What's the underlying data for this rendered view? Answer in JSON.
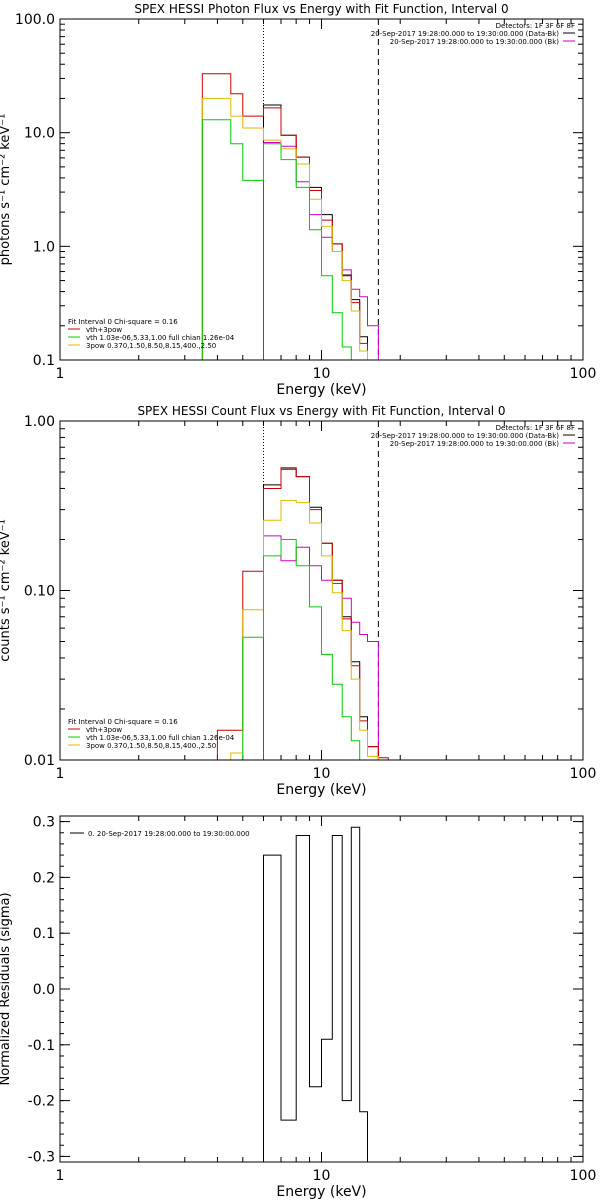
{
  "chart_data": [
    {
      "type": "line",
      "title": "SPEX HESSI Photon Flux vs Energy with Fit Function, Interval 0",
      "xlabel": "Energy (keV)",
      "ylabel": "photons s⁻¹ cm⁻² keV⁻¹",
      "xscale": "log",
      "yscale": "log",
      "xlim": [
        1,
        100
      ],
      "ylim": [
        0.1,
        100
      ],
      "xticks": [
        {
          "v": 1,
          "label": "1"
        },
        {
          "v": 10,
          "label": "10"
        },
        {
          "v": 100,
          "label": "100"
        }
      ],
      "yticks": [
        {
          "v": 0.1,
          "label": "0.1"
        },
        {
          "v": 1,
          "label": "1.0"
        },
        {
          "v": 10,
          "label": "10.0"
        },
        {
          "v": 100,
          "label": "100.0"
        }
      ],
      "vlines": [
        {
          "x": 6.0,
          "style": "dotted",
          "color": "#000000"
        },
        {
          "x": 16.5,
          "style": "dashed",
          "color": "#000000"
        }
      ],
      "header_text": [
        "Detectors: 1F 3F 6F 8F",
        "20-Sep-2017 19:28:00.000 to 19:30:00.000 (Data-Bk)",
        "20-Sep-2017 19:28:00.000 to 19:30:00.000 (Bk)"
      ],
      "header_colors": [
        "#000000",
        "#cc00cc"
      ],
      "legend_lines": [
        {
          "text": "Fit Interval 0   Chi-square = 0.16",
          "color": null
        },
        {
          "text": "vth+3pow",
          "color": "#cc0000"
        },
        {
          "text": "vth 1.03e-06,5.33,1.00   full chian 1.26e-04",
          "color": "#00cc00"
        },
        {
          "text": "3pow 0.370,1.50,8.50,8.15,400.,2.50",
          "color": "#ddbb00"
        }
      ],
      "series": [
        {
          "color": "#000000",
          "edges": [
            6.0,
            7.0,
            8.0,
            9.0,
            10.0,
            11.0,
            12.0,
            13.0,
            14.0,
            15.0,
            16.5
          ],
          "values": [
            17.5,
            9.5,
            6.1,
            3.3,
            1.9,
            1.05,
            0.56,
            0.34,
            0.16,
            0.1
          ]
        },
        {
          "color": "#cc00cc",
          "edges": [
            6.0,
            7.0,
            8.0,
            9.0,
            10.0,
            11.0,
            12.0,
            13.0,
            14.0,
            15.0,
            16.5
          ],
          "values": [
            8.2,
            7.6,
            3.7,
            1.9,
            1.2,
            0.9,
            0.62,
            0.42,
            0.36,
            0.2
          ]
        },
        {
          "color": "#cc0000",
          "edges": [
            3.5,
            4.5,
            5.0,
            6.0,
            7.0,
            8.0,
            9.0,
            10.0,
            11.0,
            12.0,
            13.0,
            14.0,
            15.0,
            16.5
          ],
          "values": [
            33,
            22,
            14,
            16.5,
            9.5,
            6.1,
            3.1,
            1.7,
            1.05,
            0.55,
            0.32,
            0.14,
            0.1
          ]
        },
        {
          "color": "#ddbb00",
          "edges": [
            3.5,
            4.5,
            5.0,
            6.0,
            7.0,
            8.0,
            9.0,
            10.0,
            11.0,
            12.0,
            13.0,
            14.0,
            15.0,
            16.5
          ],
          "values": [
            20,
            14,
            11,
            8.6,
            7.2,
            5.3,
            2.6,
            1.5,
            0.9,
            0.5,
            0.27,
            0.12,
            0.1
          ]
        },
        {
          "color": "#00cc00",
          "edges": [
            3.5,
            4.5,
            5.0,
            6.0,
            7.0,
            8.0,
            9.0,
            10.0,
            11.0,
            12.0,
            13.0,
            14.0,
            15.0
          ],
          "values": [
            13,
            8.0,
            3.8,
            8.0,
            5.8,
            3.3,
            1.4,
            0.55,
            0.26,
            0.13,
            0.1,
            0.1
          ]
        }
      ]
    },
    {
      "type": "line",
      "title": "SPEX HESSI Count Flux vs Energy with Fit Function, Interval 0",
      "xlabel": "Energy (keV)",
      "ylabel": "counts s⁻¹ cm⁻² keV⁻¹",
      "xscale": "log",
      "yscale": "log",
      "xlim": [
        1,
        100
      ],
      "ylim": [
        0.01,
        1.0
      ],
      "xticks": [
        {
          "v": 1,
          "label": "1"
        },
        {
          "v": 10,
          "label": "10"
        },
        {
          "v": 100,
          "label": "100"
        }
      ],
      "yticks": [
        {
          "v": 0.01,
          "label": "0.01"
        },
        {
          "v": 0.1,
          "label": "0.10"
        },
        {
          "v": 1,
          "label": "1.00"
        }
      ],
      "vlines": [
        {
          "x": 6.0,
          "style": "dotted",
          "color": "#000000"
        },
        {
          "x": 16.5,
          "style": "dashed",
          "color": "#000000"
        }
      ],
      "header_text": [
        "Detectors: 1F 3F 6F 8F",
        "20-Sep-2017 19:28:00.000 to 19:30:00.000 (Data-Bk)",
        "20-Sep-2017 19:28:00.000 to 19:30:00.000 (Bk)"
      ],
      "header_colors": [
        "#000000",
        "#cc00cc"
      ],
      "legend_lines": [
        {
          "text": "Fit Interval 0   Chi-square = 0.16",
          "color": null
        },
        {
          "text": "vth+3pow",
          "color": "#cc0000"
        },
        {
          "text": "vth 1.03e-06,5.33,1.00   full chian 1.26e-04",
          "color": "#00cc00"
        },
        {
          "text": "3pow 0.370,1.50,8.50,8.15,400.,2.50",
          "color": "#ddbb00"
        }
      ],
      "series": [
        {
          "color": "#000000",
          "edges": [
            6.0,
            7.0,
            8.0,
            9.0,
            10.0,
            11.0,
            12.0,
            13.0,
            14.0,
            15.0,
            16.5
          ],
          "values": [
            0.42,
            0.52,
            0.47,
            0.31,
            0.19,
            0.115,
            0.07,
            0.038,
            0.018,
            0.012
          ]
        },
        {
          "color": "#cc00cc",
          "edges": [
            6.0,
            7.0,
            8.0,
            9.0,
            10.0,
            11.0,
            12.0,
            13.0,
            14.0,
            15.0,
            16.5
          ],
          "values": [
            0.21,
            0.15,
            0.18,
            0.14,
            0.115,
            0.11,
            0.09,
            0.065,
            0.055,
            0.05
          ]
        },
        {
          "color": "#cc0000",
          "edges": [
            4.0,
            5.0,
            6.0,
            7.0,
            8.0,
            9.0,
            10.0,
            11.0,
            12.0,
            13.0,
            14.0,
            15.0,
            16.5,
            18.0
          ],
          "values": [
            0.015,
            0.13,
            0.4,
            0.53,
            0.47,
            0.3,
            0.19,
            0.115,
            0.068,
            0.036,
            0.017,
            0.012,
            0.0103
          ]
        },
        {
          "color": "#ddbb00",
          "edges": [
            4.5,
            5.0,
            6.0,
            7.0,
            8.0,
            9.0,
            10.0,
            11.0,
            12.0,
            13.0,
            14.0,
            15.0,
            16.5
          ],
          "values": [
            0.011,
            0.077,
            0.26,
            0.34,
            0.33,
            0.25,
            0.16,
            0.097,
            0.058,
            0.03,
            0.015,
            0.0105
          ]
        },
        {
          "color": "#00cc00",
          "edges": [
            5.0,
            6.0,
            7.0,
            8.0,
            9.0,
            10.0,
            11.0,
            12.0,
            13.0,
            14.0
          ],
          "values": [
            0.053,
            0.16,
            0.2,
            0.14,
            0.08,
            0.042,
            0.028,
            0.018,
            0.013
          ]
        }
      ]
    },
    {
      "type": "line",
      "title": "",
      "xlabel": "Energy (keV)",
      "ylabel": "Normalized Residuals (sigma)",
      "xscale": "log",
      "yscale": "linear",
      "xlim": [
        1,
        100
      ],
      "ylim": [
        -0.31,
        0.31
      ],
      "xticks": [
        {
          "v": 1,
          "label": "1"
        },
        {
          "v": 10,
          "label": "10"
        },
        {
          "v": 100,
          "label": "100"
        }
      ],
      "yticks": [
        {
          "v": -0.3,
          "label": "-0.3"
        },
        {
          "v": -0.2,
          "label": "-0.2"
        },
        {
          "v": -0.1,
          "label": "-0.1"
        },
        {
          "v": 0,
          "label": "0.0"
        },
        {
          "v": 0.1,
          "label": "0.1"
        },
        {
          "v": 0.2,
          "label": "0.2"
        },
        {
          "v": 0.3,
          "label": "0.3"
        }
      ],
      "legend_lines": [
        {
          "text": "0. 20-Sep-2017 19:28:00.000 to 19:30:00.000",
          "color": "#000000"
        }
      ],
      "series": [
        {
          "color": "#000000",
          "edges": [
            6.0,
            7.0,
            8.0,
            9.0,
            10.0,
            11.0,
            12.0,
            13.0,
            14.0,
            15.0,
            16.5
          ],
          "values": [
            0.24,
            -0.235,
            0.275,
            -0.175,
            -0.09,
            0.275,
            -0.2,
            0.29,
            -0.22,
            -0.31
          ]
        }
      ]
    }
  ]
}
